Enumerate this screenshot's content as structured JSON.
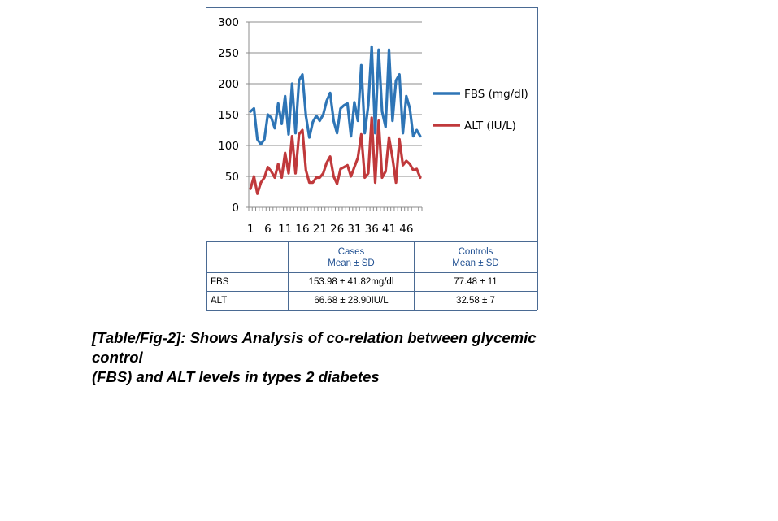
{
  "chart_data": {
    "type": "line",
    "x": [
      1,
      2,
      3,
      4,
      5,
      6,
      7,
      8,
      9,
      10,
      11,
      12,
      13,
      14,
      15,
      16,
      17,
      18,
      19,
      20,
      21,
      22,
      23,
      24,
      25,
      26,
      27,
      28,
      29,
      30,
      31,
      32,
      33,
      34,
      35,
      36,
      37,
      38,
      39,
      40,
      41,
      42,
      43,
      44,
      45,
      46,
      47,
      48,
      49,
      50
    ],
    "xtick_labels": [
      "1",
      "6",
      "11",
      "16",
      "21",
      "26",
      "31",
      "36",
      "41",
      "46"
    ],
    "yticks": [
      0,
      50,
      100,
      150,
      200,
      250,
      300
    ],
    "ylim": [
      0,
      300
    ],
    "grid": true,
    "legend_position": "right",
    "series": [
      {
        "name": "FBS (mg/dl)",
        "color": "#2e75b6",
        "values": [
          155,
          160,
          110,
          102,
          110,
          150,
          145,
          128,
          168,
          135,
          180,
          118,
          200,
          120,
          205,
          215,
          148,
          113,
          138,
          148,
          140,
          150,
          172,
          185,
          140,
          120,
          160,
          165,
          168,
          115,
          170,
          140,
          230,
          120,
          165,
          260,
          120,
          255,
          155,
          130,
          255,
          140,
          205,
          215,
          120,
          180,
          160,
          115,
          125,
          115
        ]
      },
      {
        "name": "ALT (IU/L)",
        "color": "#c0393b",
        "values": [
          30,
          50,
          22,
          40,
          48,
          65,
          58,
          48,
          70,
          48,
          88,
          55,
          115,
          55,
          118,
          125,
          60,
          40,
          40,
          48,
          48,
          55,
          72,
          82,
          50,
          38,
          62,
          65,
          68,
          50,
          65,
          80,
          118,
          48,
          55,
          145,
          40,
          140,
          48,
          58,
          113,
          80,
          40,
          110,
          68,
          75,
          70,
          60,
          62,
          48
        ]
      }
    ]
  },
  "table": {
    "header": {
      "blank": "",
      "cases_line1": "Cases",
      "cases_line2": "Mean ± SD",
      "controls_line1": "Controls",
      "controls_line2": "Mean ± SD"
    },
    "rows": [
      {
        "label": "FBS",
        "cases": "153.98 ± 41.82mg/dl",
        "controls": "77.48 ± 11"
      },
      {
        "label": "ALT",
        "cases": "66.68 ± 28.90IU/L",
        "controls": "32.58 ± 7"
      }
    ]
  },
  "caption": {
    "line1": "[Table/Fig-2]: Shows Analysis of co-relation between glycemic",
    "line2": "control",
    "line3": "(FBS) and ALT levels in types 2 diabetes"
  }
}
